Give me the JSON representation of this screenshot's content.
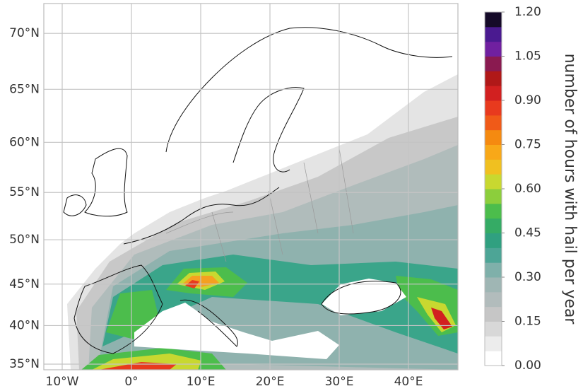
{
  "map": {
    "lat_ticks": [
      {
        "value": 35,
        "label": "35°N"
      },
      {
        "value": 40,
        "label": "40°N"
      },
      {
        "value": 45,
        "label": "45°N"
      },
      {
        "value": 50,
        "label": "50°N"
      },
      {
        "value": 55,
        "label": "55°N"
      },
      {
        "value": 60,
        "label": "60°N"
      },
      {
        "value": 65,
        "label": "65°N"
      },
      {
        "value": 70,
        "label": "70°N"
      }
    ],
    "lon_ticks": [
      {
        "value": -10,
        "label": "10°W"
      },
      {
        "value": 0,
        "label": "0°"
      },
      {
        "value": 10,
        "label": "10°E"
      },
      {
        "value": 20,
        "label": "20°E"
      },
      {
        "value": 30,
        "label": "30°E"
      },
      {
        "value": 40,
        "label": "40°E"
      }
    ],
    "grid": true
  },
  "colorbar": {
    "label": "number of hours with hail per year",
    "lim": [
      0,
      1.2
    ],
    "ticks": [
      {
        "value": 0,
        "label": "0.00"
      },
      {
        "value": 0.15,
        "label": "0.15"
      },
      {
        "value": 0.3,
        "label": "0.30"
      },
      {
        "value": 0.45,
        "label": "0.45"
      },
      {
        "value": 0.6,
        "label": "0.60"
      },
      {
        "value": 0.75,
        "label": "0.75"
      },
      {
        "value": 0.9,
        "label": "0.90"
      },
      {
        "value": 1.05,
        "label": "1.05"
      },
      {
        "value": 1.2,
        "label": "1.20"
      }
    ],
    "colors": [
      "#ffffff",
      "#ececec",
      "#d8d8d8",
      "#c6c6c6",
      "#b2bcbc",
      "#9fb6b4",
      "#7fb0aa",
      "#4da596",
      "#30a080",
      "#35ab65",
      "#4cbd4c",
      "#8cce3c",
      "#c8d830",
      "#f0c020",
      "#f8a818",
      "#f58a10",
      "#f05a18",
      "#e83a1e",
      "#d22020",
      "#b01818",
      "#8a1a50",
      "#7020a0",
      "#4a1a90",
      "#150a28"
    ]
  }
}
